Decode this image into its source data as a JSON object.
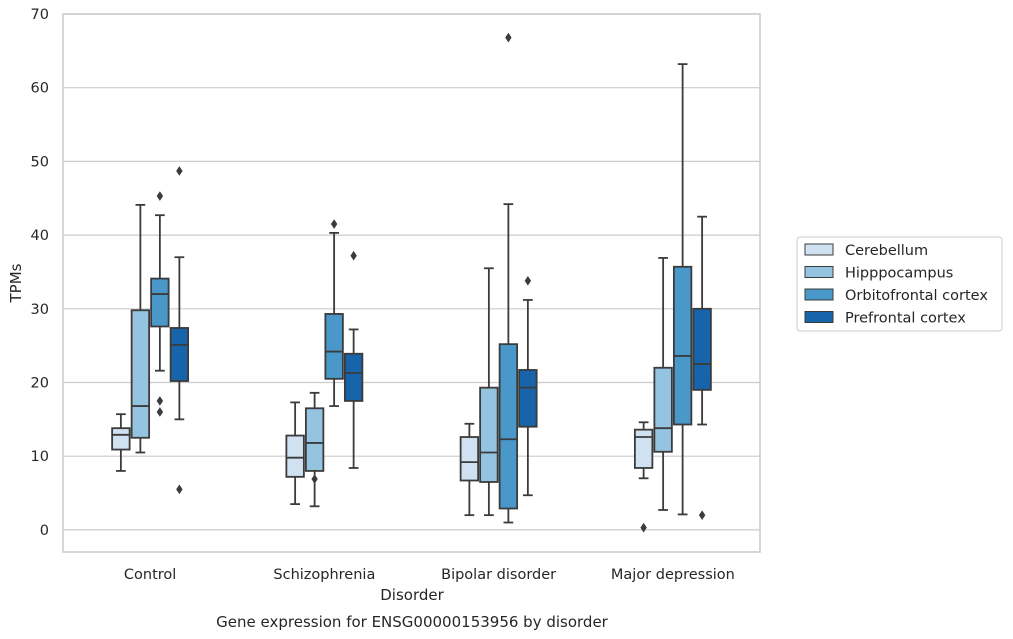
{
  "chart_data": {
    "type": "box",
    "title": "Gene expression for ENSG00000153956 by disorder",
    "xlabel": "Disorder",
    "ylabel": "TPMs",
    "ylim": [
      -3,
      70
    ],
    "yticks": [
      0,
      10,
      20,
      30,
      40,
      50,
      60,
      70
    ],
    "grid": "horizontal",
    "legend_position": "right",
    "categories": [
      "Control",
      "Schizophrenia",
      "Bipolar disorder",
      "Major depression"
    ],
    "series": [
      {
        "name": "Cerebellum",
        "color": "#d0e1f2",
        "boxes": [
          {
            "whislo": 8.0,
            "q1": 10.9,
            "med": 12.9,
            "q3": 13.8,
            "whishi": 15.7,
            "fliers": []
          },
          {
            "whislo": 3.5,
            "q1": 7.2,
            "med": 9.8,
            "q3": 12.8,
            "whishi": 17.3,
            "fliers": []
          },
          {
            "whislo": 2.0,
            "q1": 6.7,
            "med": 9.2,
            "q3": 12.6,
            "whishi": 14.4,
            "fliers": []
          },
          {
            "whislo": 7.0,
            "q1": 8.4,
            "med": 12.6,
            "q3": 13.6,
            "whishi": 14.6,
            "fliers": [
              0.3
            ]
          }
        ]
      },
      {
        "name": "Hipppocampus",
        "color": "#94c4df",
        "boxes": [
          {
            "whislo": 10.5,
            "q1": 12.5,
            "med": 16.8,
            "q3": 29.8,
            "whishi": 44.1,
            "fliers": []
          },
          {
            "whislo": 3.2,
            "q1": 8.0,
            "med": 11.8,
            "q3": 16.5,
            "whishi": 18.6,
            "fliers": [
              6.9
            ]
          },
          {
            "whislo": 2.0,
            "q1": 6.5,
            "med": 10.5,
            "q3": 19.3,
            "whishi": 35.5,
            "fliers": []
          },
          {
            "whislo": 2.7,
            "q1": 10.6,
            "med": 13.8,
            "q3": 22.0,
            "whishi": 36.9,
            "fliers": []
          }
        ]
      },
      {
        "name": "Orbitofrontal cortex",
        "color": "#4a98c9",
        "boxes": [
          {
            "whislo": 21.6,
            "q1": 27.6,
            "med": 32.0,
            "q3": 34.1,
            "whishi": 42.7,
            "fliers": [
              45.3,
              17.5,
              16.0
            ]
          },
          {
            "whislo": 16.8,
            "q1": 20.5,
            "med": 24.2,
            "q3": 29.3,
            "whishi": 40.3,
            "fliers": [
              41.5
            ]
          },
          {
            "whislo": 1.0,
            "q1": 2.9,
            "med": 12.3,
            "q3": 25.2,
            "whishi": 44.2,
            "fliers": [
              66.8
            ]
          },
          {
            "whislo": 2.1,
            "q1": 14.3,
            "med": 23.6,
            "q3": 35.7,
            "whishi": 63.2,
            "fliers": []
          }
        ]
      },
      {
        "name": "Prefrontal cortex",
        "color": "#1764ab",
        "boxes": [
          {
            "whislo": 15.0,
            "q1": 20.2,
            "med": 25.1,
            "q3": 27.4,
            "whishi": 37.0,
            "fliers": [
              48.7,
              5.5
            ]
          },
          {
            "whislo": 8.4,
            "q1": 17.5,
            "med": 21.3,
            "q3": 23.9,
            "whishi": 27.2,
            "fliers": [
              37.2
            ]
          },
          {
            "whislo": 4.7,
            "q1": 14.0,
            "med": 19.3,
            "q3": 21.7,
            "whishi": 31.2,
            "fliers": [
              33.8
            ]
          },
          {
            "whislo": 14.3,
            "q1": 19.0,
            "med": 22.5,
            "q3": 30.0,
            "whishi": 42.5,
            "fliers": [
              2.0
            ]
          }
        ]
      }
    ]
  }
}
